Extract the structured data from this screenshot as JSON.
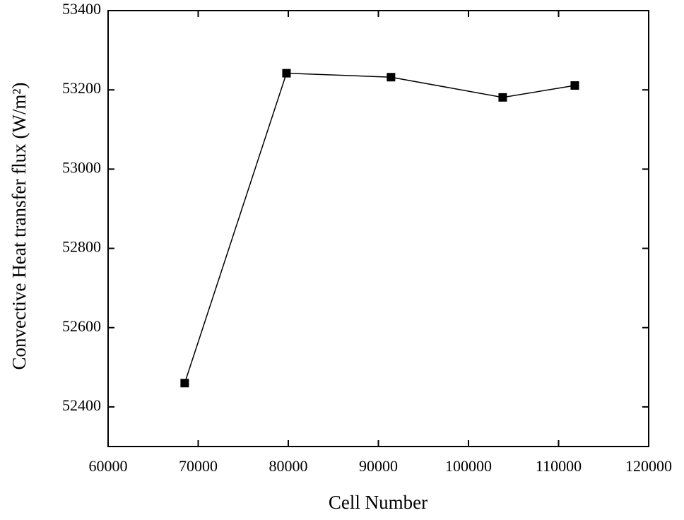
{
  "chart_data": {
    "type": "line",
    "xlabel": "Cell Number",
    "ylabel": "Convective Heat transfer flux (W/m²)",
    "x": [
      68500,
      79800,
      91400,
      103800,
      111800
    ],
    "series": [
      {
        "color": "#000000",
        "values": [
          52460,
          53242,
          53232,
          53181,
          53211
        ]
      }
    ],
    "xlim": [
      60000,
      120000
    ],
    "xticks": [
      60000,
      70000,
      80000,
      90000,
      100000,
      110000,
      120000
    ],
    "ylim": [
      52300,
      53400
    ],
    "yticks": [
      52400,
      52600,
      52800,
      53000,
      53200,
      53400
    ]
  }
}
